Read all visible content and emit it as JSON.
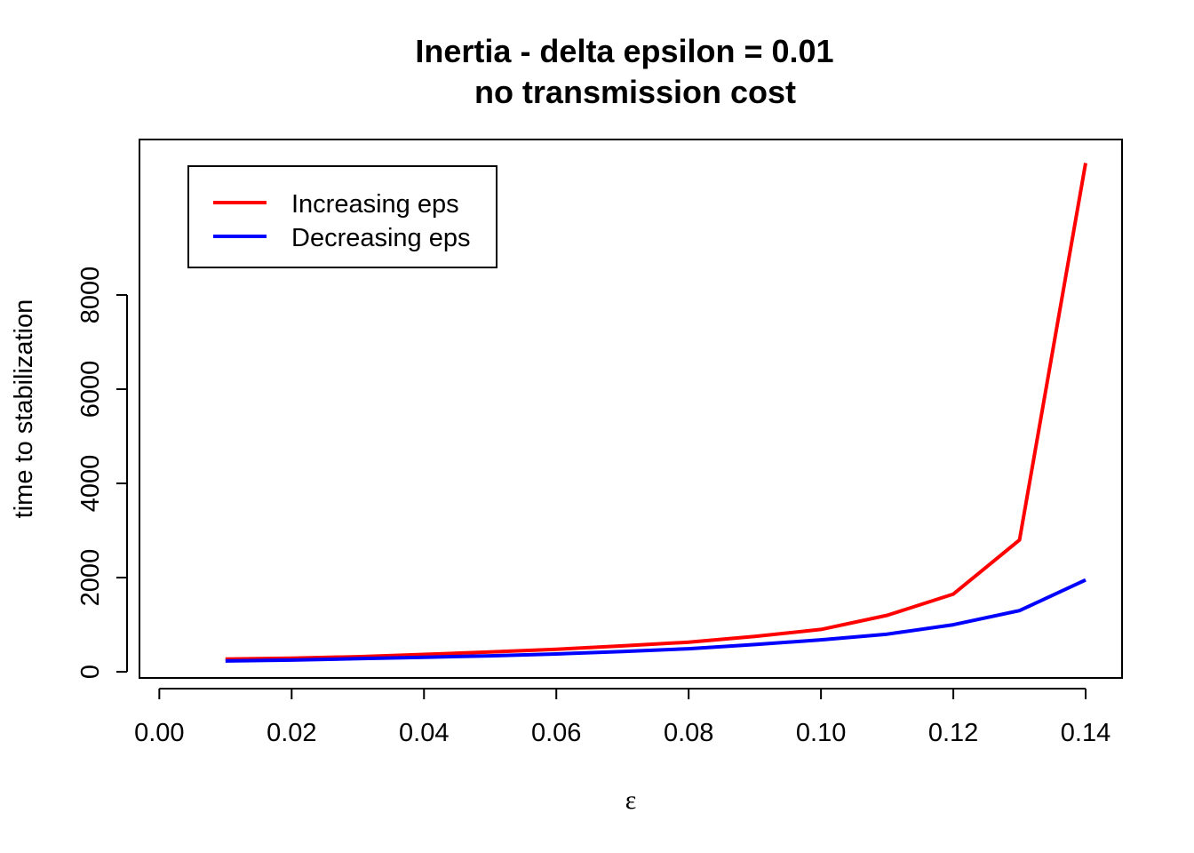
{
  "chart_data": {
    "type": "line",
    "title": "Inertia - delta epsilon = 0.01",
    "subtitle": "no transmission cost",
    "xlabel": "ε",
    "ylabel": "time to stabilization",
    "xlim": [
      -0.003,
      0.1455
    ],
    "ylim": [
      -130,
      11300
    ],
    "x_ticks": [
      "0.00",
      "0.02",
      "0.04",
      "0.06",
      "0.08",
      "0.10",
      "0.12",
      "0.14"
    ],
    "x_tick_values": [
      0.0,
      0.02,
      0.04,
      0.06,
      0.08,
      0.1,
      0.12,
      0.14
    ],
    "y_ticks": [
      "0",
      "2000",
      "4000",
      "6000",
      "8000"
    ],
    "y_tick_values": [
      0,
      2000,
      4000,
      6000,
      8000
    ],
    "x": [
      0.01,
      0.02,
      0.03,
      0.04,
      0.05,
      0.06,
      0.07,
      0.08,
      0.09,
      0.1,
      0.11,
      0.12,
      0.13,
      0.14
    ],
    "series": [
      {
        "name": "Increasing eps",
        "color": "#ff0000",
        "values": [
          270,
          290,
          320,
          370,
          420,
          480,
          550,
          630,
          750,
          900,
          1200,
          1650,
          2800,
          10800
        ]
      },
      {
        "name": "Decreasing eps",
        "color": "#0000ff",
        "values": [
          230,
          250,
          280,
          310,
          340,
          380,
          430,
          490,
          580,
          680,
          800,
          1000,
          1300,
          1950
        ]
      }
    ],
    "legend_position": "top-left",
    "grid": false
  }
}
